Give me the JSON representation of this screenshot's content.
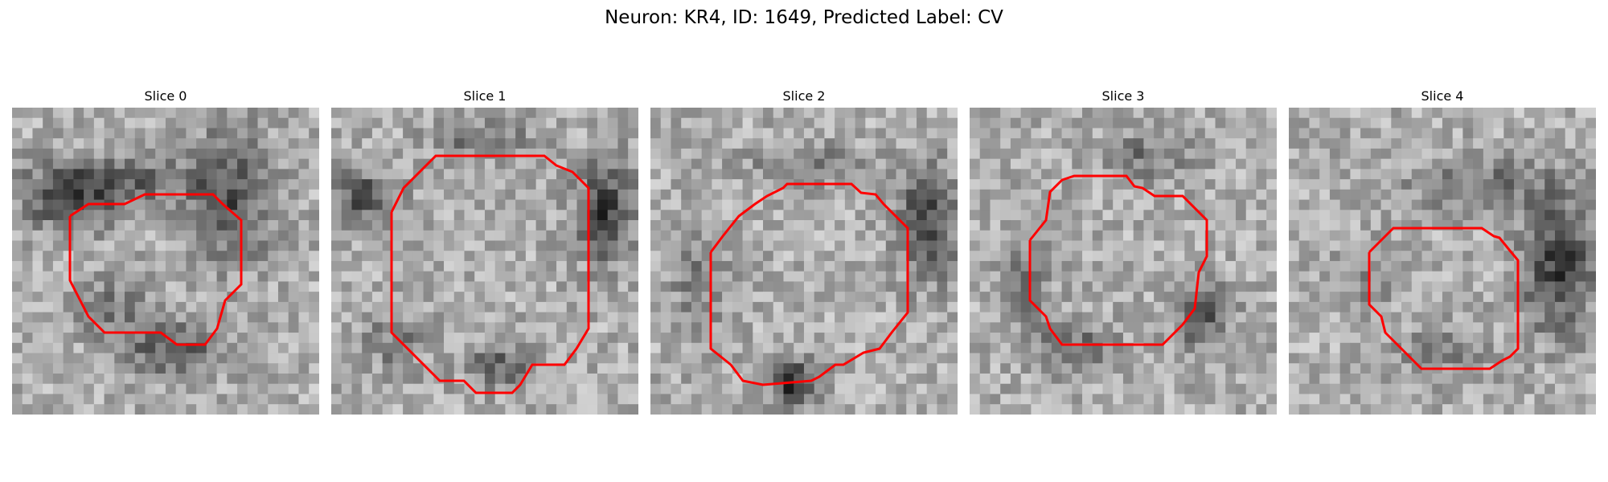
{
  "figure": {
    "title": "Neuron: KR4, ID: 1649, Predicted Label: CV",
    "outline_color": "#ff0000"
  },
  "panels": [
    {
      "title": "Slice 0"
    },
    {
      "title": "Slice 1"
    },
    {
      "title": "Slice 2"
    },
    {
      "title": "Slice 3"
    },
    {
      "title": "Slice 4"
    }
  ]
}
